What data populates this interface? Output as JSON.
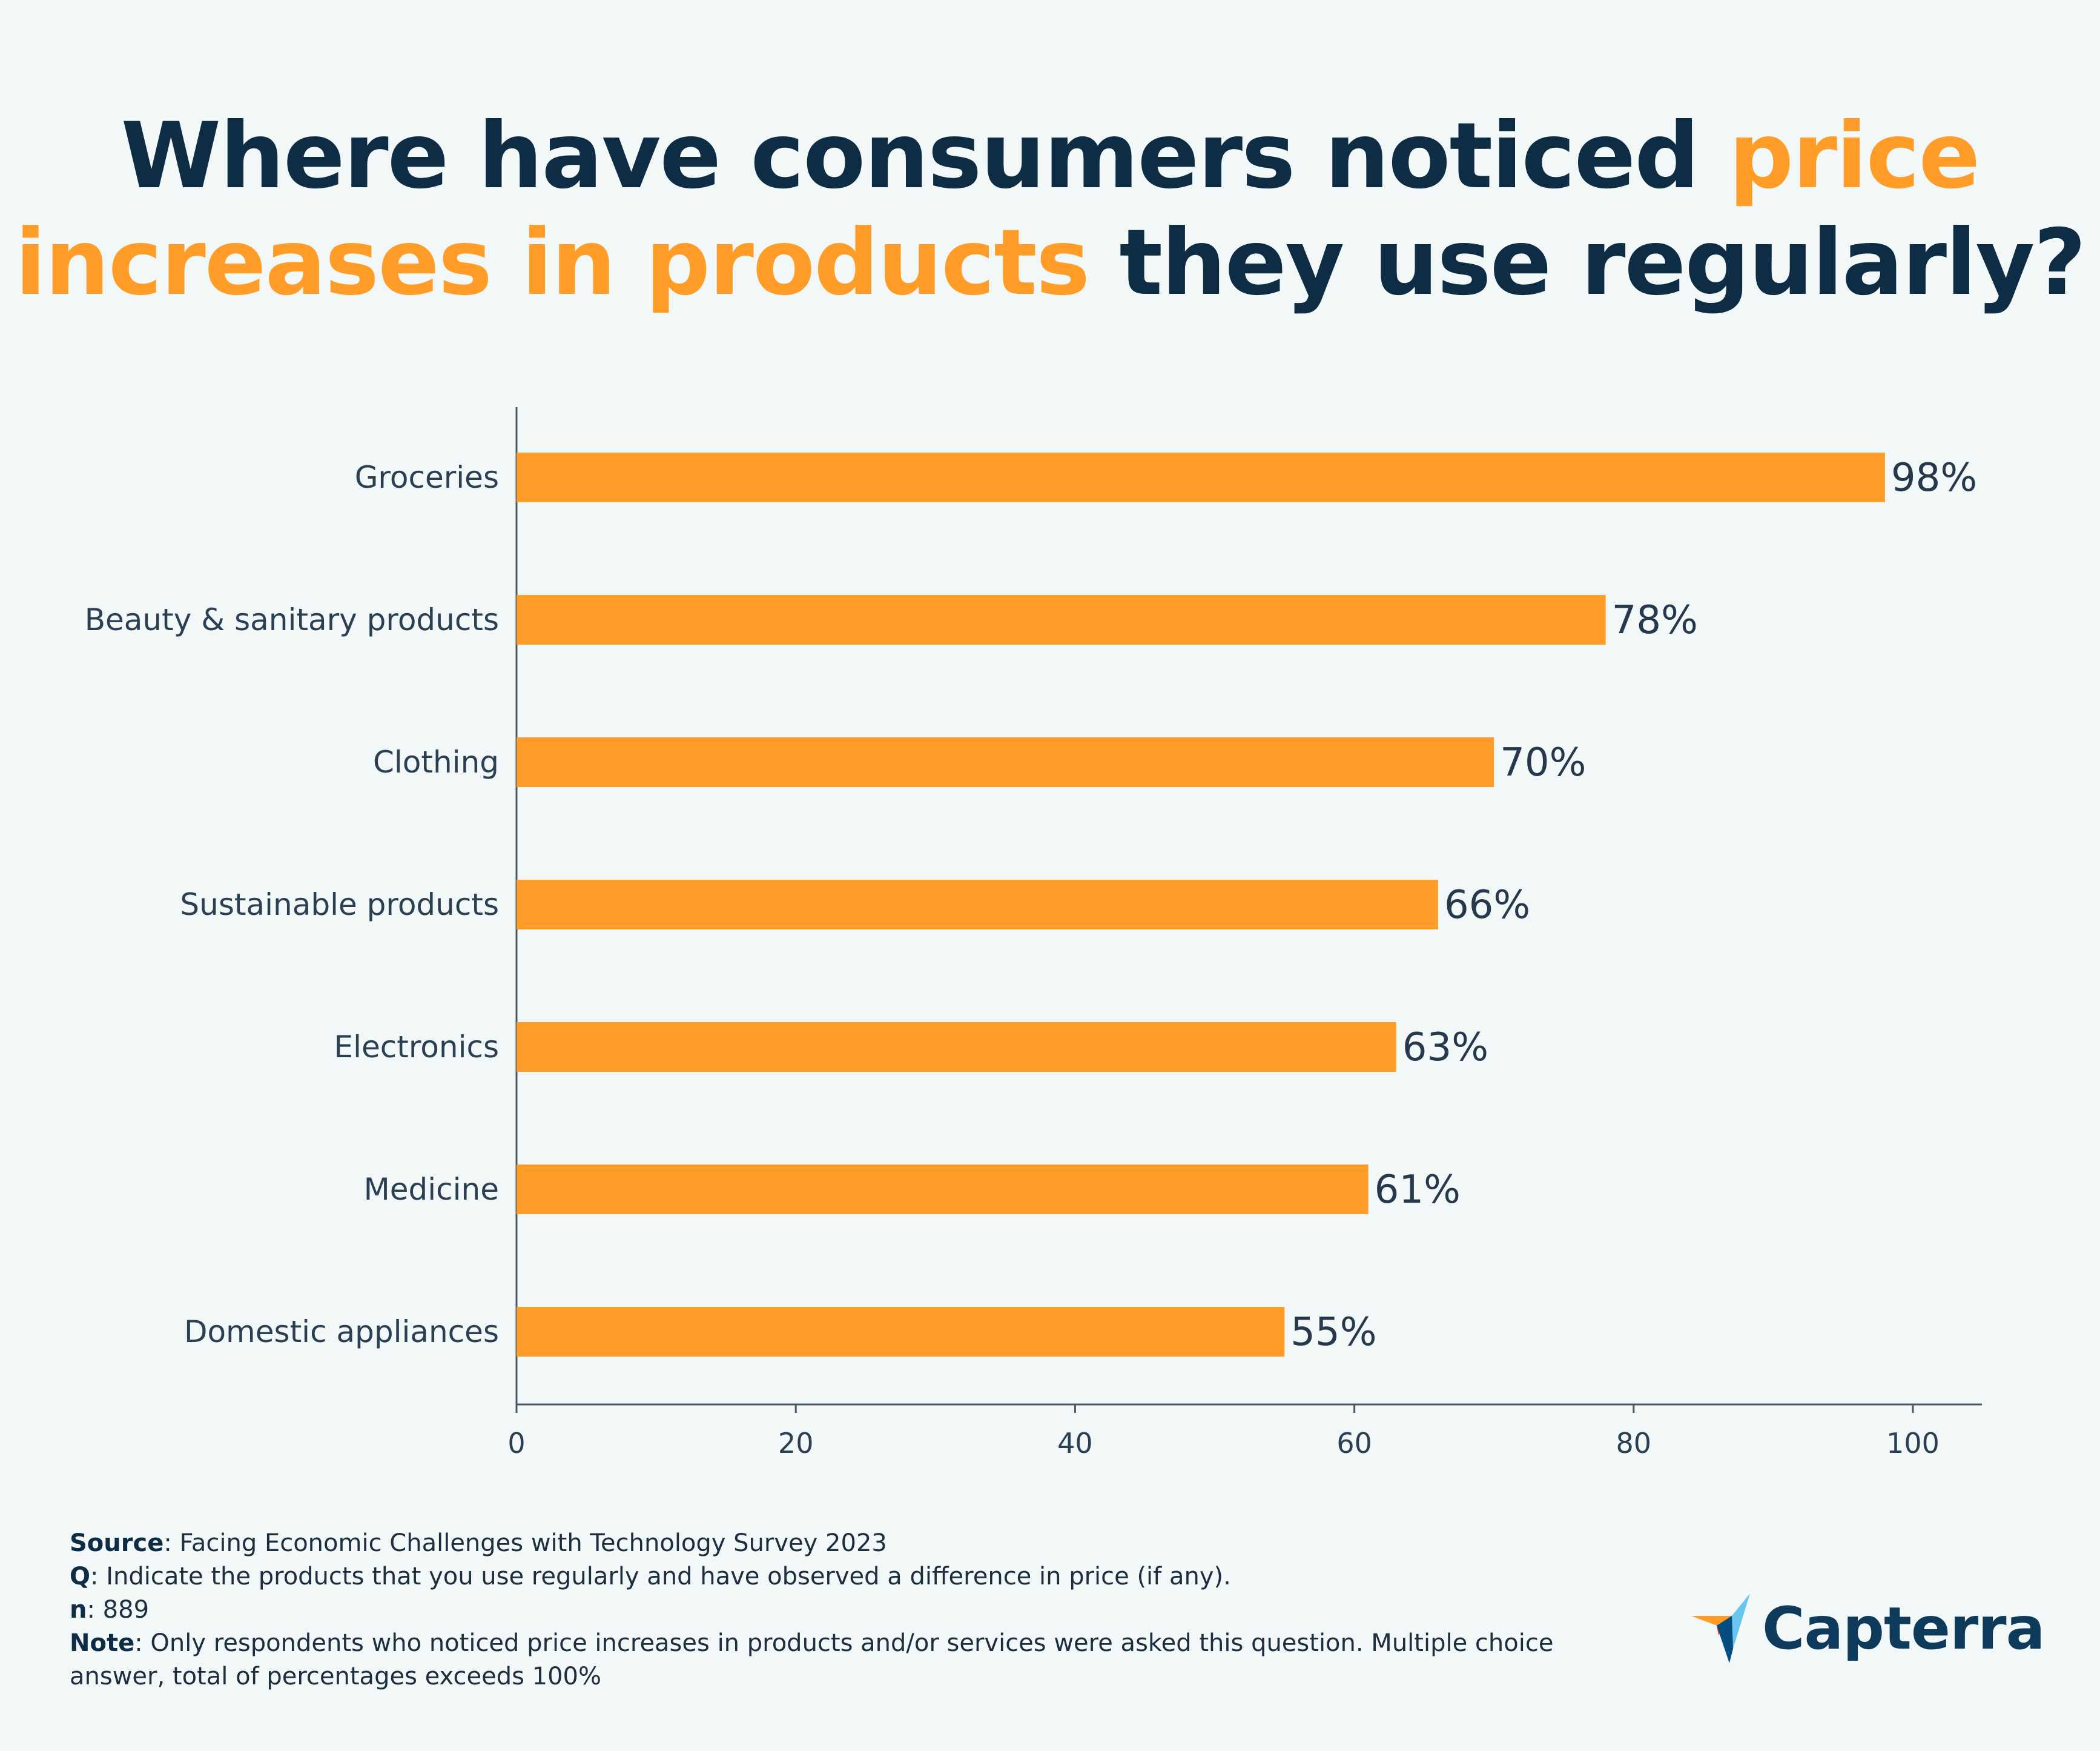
{
  "title": {
    "part1": "Where have consumers noticed ",
    "highlight": "price increases in products",
    "part2": " they use regularly?"
  },
  "chart_data": {
    "type": "bar",
    "orientation": "horizontal",
    "categories": [
      "Groceries",
      "Beauty & sanitary products",
      "Clothing",
      "Sustainable products",
      "Electronics",
      "Medicine",
      "Domestic appliances"
    ],
    "values": [
      98,
      78,
      70,
      66,
      63,
      61,
      55
    ],
    "value_labels": [
      "98%",
      "78%",
      "70%",
      "66%",
      "63%",
      "61%",
      "55%"
    ],
    "xlim": [
      0,
      105
    ],
    "xticks": [
      0,
      20,
      40,
      60,
      80,
      100
    ],
    "grid": false,
    "bar_color": "#ff9d28",
    "legend": "none"
  },
  "footer": {
    "source_label": "Source",
    "source_text": ": Facing Economic Challenges with Technology Survey 2023",
    "q_label": "Q",
    "q_text": ": Indicate the products that you use regularly and have observed a difference in price (if any).",
    "n_label": "n",
    "n_text": ": 889",
    "note_label": "Note",
    "note_text": ": Only respondents who noticed price increases in products and/or services were asked this question. Multiple choice answer, total of percentages exceeds 100%"
  },
  "logo": {
    "text": "Capterra",
    "colors": {
      "orange": "#ff9d28",
      "red": "#ff3d2e",
      "blue": "#68c5ed",
      "navy": "#044d80"
    }
  },
  "colors": {
    "background": "#f2f7f7",
    "title": "#0e2c44",
    "accent": "#ff9d28"
  }
}
